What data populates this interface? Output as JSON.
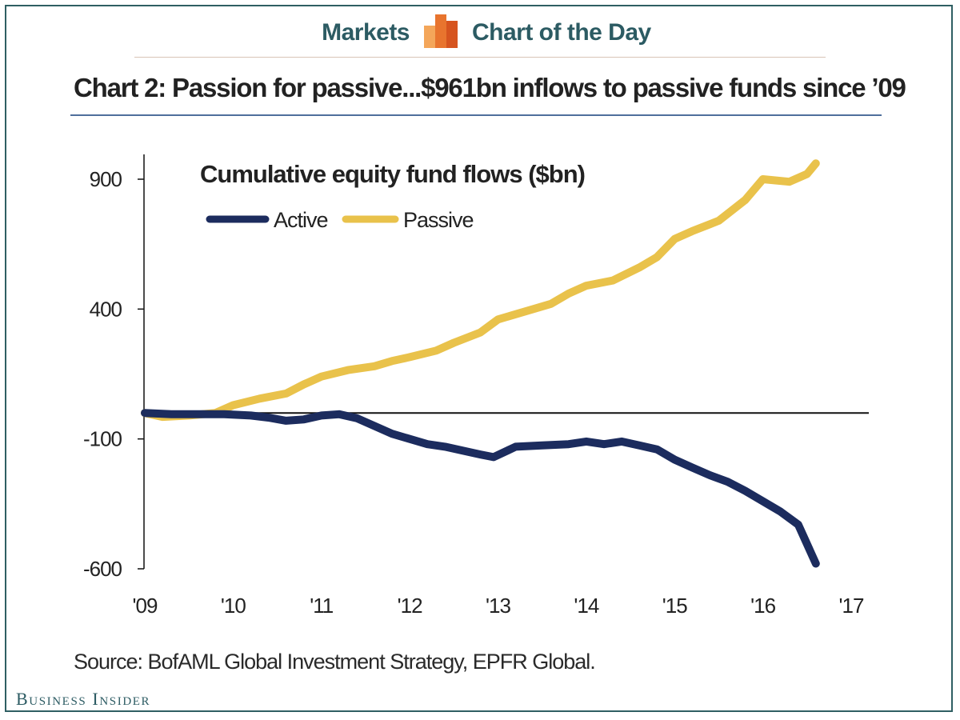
{
  "header": {
    "left_label": "Markets",
    "right_label": "Chart of the Day"
  },
  "colors": {
    "active": "#1c2c5e",
    "passive": "#e9c24b",
    "frame": "#2f5f63",
    "brand": "#2c5b63"
  },
  "brand": {
    "name": "Business Insider"
  },
  "chart_data": {
    "type": "line",
    "title": "Chart 2: Passion for passive...$961bn inflows to passive funds since ’09",
    "subtitle": "Cumulative equity fund flows ($bn)",
    "xlabel": "",
    "ylabel": "",
    "xlim": [
      2009,
      2017
    ],
    "ylim": [
      -600,
      1000
    ],
    "x_ticks": [
      "'09",
      "'10",
      "'11",
      "'12",
      "'13",
      "'14",
      "'15",
      "'16",
      "'17"
    ],
    "y_ticks": [
      900,
      400,
      -100,
      -600
    ],
    "reference_line": 0,
    "legend": {
      "position": "top-left"
    },
    "grid": false,
    "series": [
      {
        "name": "Active",
        "x": [
          2009.0,
          2009.3,
          2009.6,
          2009.9,
          2010.2,
          2010.4,
          2010.6,
          2010.8,
          2011.0,
          2011.2,
          2011.4,
          2011.6,
          2011.8,
          2012.0,
          2012.2,
          2012.4,
          2012.6,
          2012.8,
          2012.95,
          2013.2,
          2013.5,
          2013.8,
          2014.0,
          2014.2,
          2014.4,
          2014.6,
          2014.8,
          2015.0,
          2015.2,
          2015.4,
          2015.6,
          2015.8,
          2016.0,
          2016.2,
          2016.4,
          2016.6
        ],
        "values": [
          0,
          -5,
          -5,
          -5,
          -10,
          -18,
          -30,
          -25,
          -10,
          -5,
          -20,
          -50,
          -80,
          -100,
          -120,
          -130,
          -145,
          -160,
          -170,
          -130,
          -125,
          -120,
          -110,
          -120,
          -110,
          -125,
          -140,
          -180,
          -210,
          -240,
          -265,
          -300,
          -340,
          -380,
          -430,
          -580
        ]
      },
      {
        "name": "Passive",
        "x": [
          2009.0,
          2009.2,
          2009.5,
          2009.8,
          2010.0,
          2010.3,
          2010.6,
          2010.8,
          2011.0,
          2011.3,
          2011.6,
          2011.8,
          2012.0,
          2012.3,
          2012.5,
          2012.8,
          2013.0,
          2013.3,
          2013.6,
          2013.8,
          2014.0,
          2014.3,
          2014.6,
          2014.8,
          2015.0,
          2015.2,
          2015.5,
          2015.8,
          2016.0,
          2016.3,
          2016.5,
          2016.6
        ],
        "values": [
          0,
          -15,
          -10,
          0,
          30,
          55,
          75,
          110,
          140,
          165,
          180,
          200,
          215,
          240,
          270,
          310,
          360,
          390,
          420,
          460,
          490,
          510,
          560,
          600,
          670,
          700,
          740,
          820,
          900,
          890,
          920,
          961
        ]
      }
    ],
    "source": "Source: BofAML Global Investment Strategy, EPFR Global."
  }
}
